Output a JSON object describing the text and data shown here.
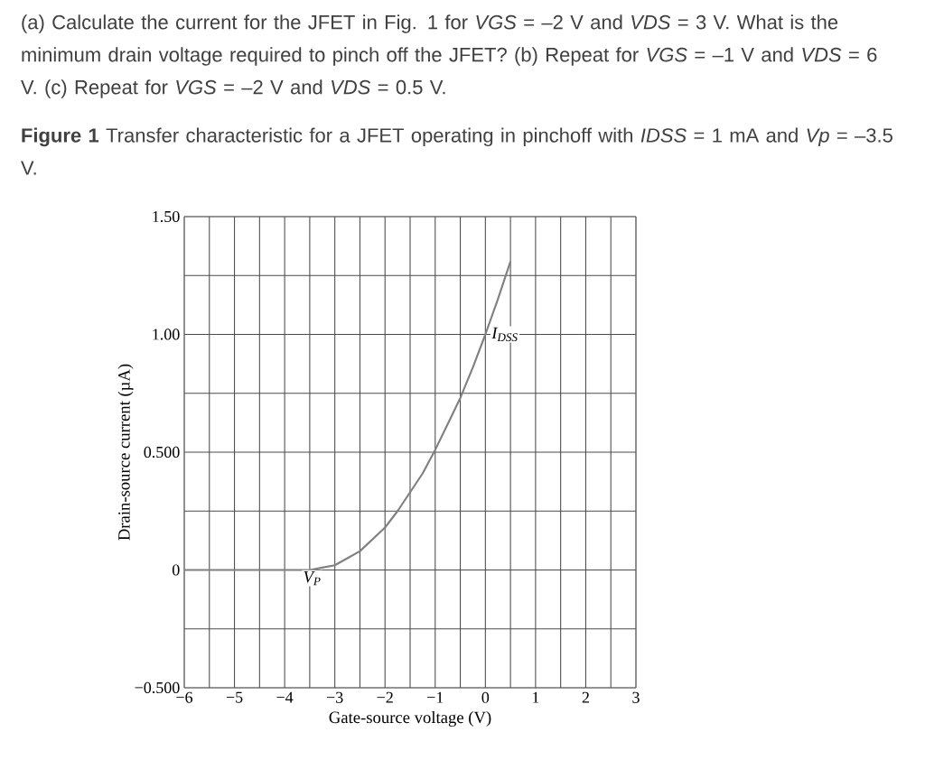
{
  "chart_data": {
    "type": "line",
    "title": "(a) Calculate the current for the JFET in Fig. 1 for *VGS* = –2 V and *VDS* = 3 V. What is the minimum drain voltage required to pinch off the JFET? (b) Repeat for *VGS* = –1 V and *VDS* = 6 V. (c) Repeat for *VGS* = –2 V and *VDS* = 0.5 V.",
    "subtitle": "**Figure 1** Transfer characteristic for a JFET operating in pinchoff with *IDSS* = 1 mA and *Vp* = –3.5 V.",
    "xlabel": "Gate-source voltage (V)",
    "ylabel": "Drain-source current (µA)",
    "x": [
      -6,
      -3.5,
      -3.25,
      -3,
      -2.75,
      -2.5,
      -2.25,
      -2,
      -1.75,
      -1.5,
      -1.25,
      -1,
      -0.75,
      -0.5,
      -0.25,
      0,
      0.25,
      0.5
    ],
    "series": [
      {
        "color": "#808080",
        "values": [
          0,
          0,
          0.01,
          0.02,
          0.05,
          0.08,
          0.13,
          0.18,
          0.25,
          0.33,
          0.41,
          0.51,
          0.62,
          0.73,
          0.86,
          1.0,
          1.15,
          1.31
        ]
      }
    ],
    "xlim": [
      -6,
      3
    ],
    "ylim": [
      -0.5,
      1.5
    ],
    "xticks": [
      {
        "value": -6,
        "label": "−6"
      },
      {
        "value": -5.5,
        "label": null
      },
      {
        "value": -5,
        "label": "−5"
      },
      {
        "value": -4.5,
        "label": null
      },
      {
        "value": -4,
        "label": "−4"
      },
      {
        "value": -3.5,
        "label": null
      },
      {
        "value": -3,
        "label": "−3"
      },
      {
        "value": -2.5,
        "label": null
      },
      {
        "value": -2,
        "label": "−2"
      },
      {
        "value": -1.5,
        "label": null
      },
      {
        "value": -1,
        "label": "−1"
      },
      {
        "value": -0.5,
        "label": null
      },
      0,
      {
        "value": 0.5,
        "label": null
      },
      1,
      {
        "value": 1.5,
        "label": null
      },
      2,
      {
        "value": 2.5,
        "label": null
      },
      3
    ],
    "yticks": [
      {
        "value": -0.5,
        "label": "−0.500"
      },
      {
        "value": -0.25,
        "label": null
      },
      0,
      {
        "value": 0.25,
        "label": null
      },
      {
        "value": 0.5,
        "label": "0.500"
      },
      {
        "value": 0.75,
        "label": null
      },
      {
        "value": 1,
        "label": "1.00"
      },
      {
        "value": 1.25,
        "label": null
      },
      {
        "value": 1.5,
        "label": "1.50"
      }
    ],
    "grid": true,
    "marker": "none",
    "line_style": "solid",
    "annotations": [
      {
        "text": "I$_{DSS}$",
        "x": 0,
        "y": 1
      },
      {
        "text": "V$_{P}$",
        "x": -3.5,
        "y": 0
      }
    ]
  }
}
